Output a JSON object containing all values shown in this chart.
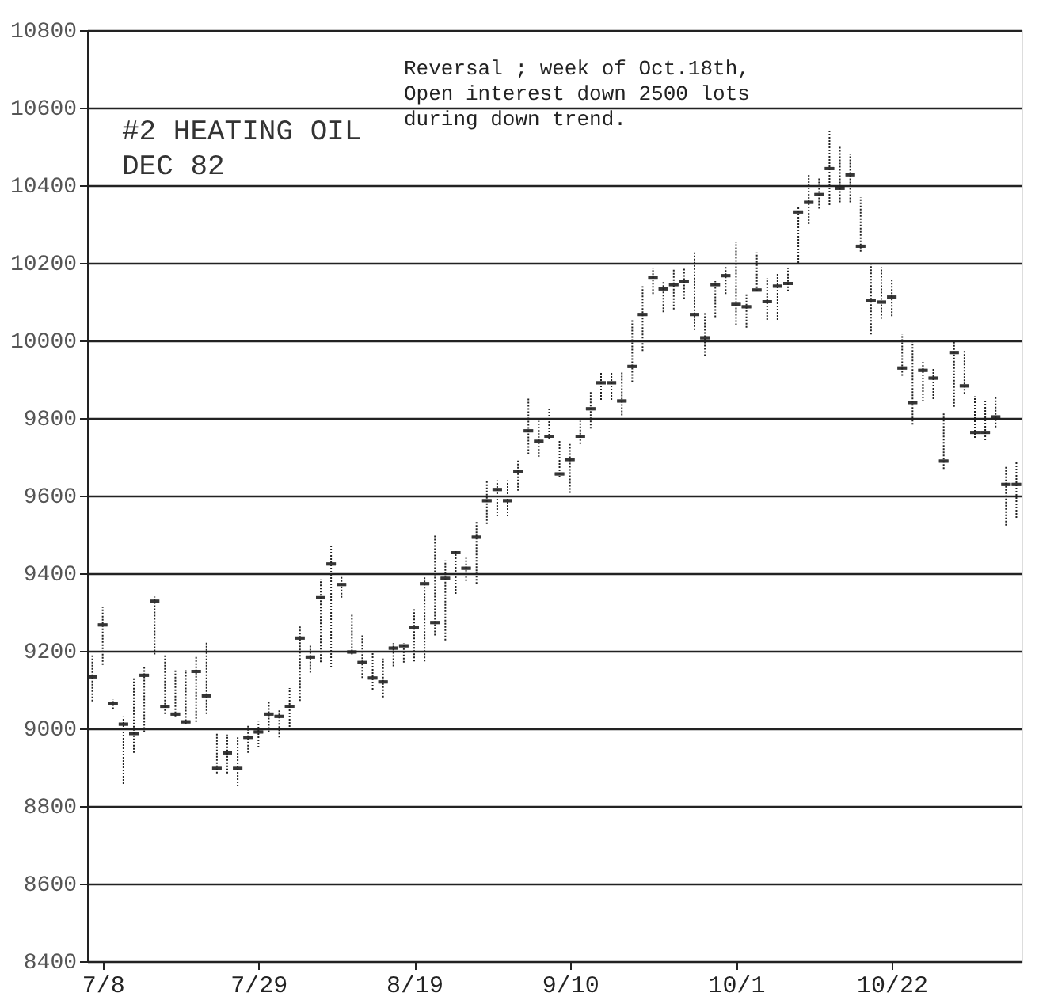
{
  "chart_data": {
    "type": "candlestick",
    "title": "#2 HEATING OIL",
    "subtitle": "DEC 82",
    "annotations": [
      "Reversal ; week of Oct.18th, Open interest down 2500 lots during down trend."
    ],
    "categories": [
      null,
      "7/8",
      null,
      null,
      null,
      null,
      null,
      null,
      null,
      null,
      null,
      null,
      null,
      null,
      null,
      null,
      "7/29",
      null,
      null,
      null,
      null,
      null,
      null,
      null,
      null,
      null,
      null,
      null,
      null,
      null,
      null,
      "8/19",
      null,
      null,
      null,
      null,
      null,
      null,
      null,
      null,
      null,
      null,
      null,
      null,
      null,
      null,
      "9/10",
      null,
      null,
      null,
      null,
      null,
      null,
      null,
      null,
      null,
      null,
      null,
      null,
      null,
      null,
      null,
      "10/1",
      null,
      null,
      null,
      null,
      null,
      null,
      null,
      null,
      null,
      null,
      null,
      null,
      null,
      null,
      "10/22",
      null,
      null,
      null,
      null,
      null,
      null,
      null,
      null,
      null,
      null,
      null,
      null
    ],
    "ohlc": [
      [
        9133,
        9190,
        9070,
        9133
      ],
      [
        9267,
        9313,
        9164,
        9267
      ],
      [
        9064,
        9075,
        9050,
        9064
      ],
      [
        9011,
        9031,
        8857,
        9011
      ],
      [
        8987,
        9131,
        8937,
        8987
      ],
      [
        9137,
        9161,
        8991,
        9137
      ],
      [
        9328,
        9340,
        9191,
        9328
      ],
      [
        9057,
        9191,
        9037,
        9057
      ],
      [
        9037,
        9151,
        9031,
        9037
      ],
      [
        9017,
        9151,
        9011,
        9017
      ],
      [
        9147,
        9184,
        9017,
        9147
      ],
      [
        9084,
        9224,
        9037,
        9084
      ],
      [
        8897,
        8991,
        8884,
        8897
      ],
      [
        8937,
        8984,
        8884,
        8937
      ],
      [
        8897,
        8977,
        8851,
        8897
      ],
      [
        8977,
        9011,
        8937,
        8977
      ],
      [
        8991,
        9017,
        8951,
        8991
      ],
      [
        9037,
        9071,
        8991,
        9037
      ],
      [
        9031,
        9051,
        8977,
        9031
      ],
      [
        9057,
        9104,
        9004,
        9057
      ],
      [
        9233,
        9264,
        9071,
        9233
      ],
      [
        9184,
        9217,
        9144,
        9184
      ],
      [
        9337,
        9384,
        9171,
        9337
      ],
      [
        9424,
        9471,
        9157,
        9424
      ],
      [
        9371,
        9391,
        9337,
        9371
      ],
      [
        9197,
        9297,
        9191,
        9197
      ],
      [
        9170,
        9240,
        9130,
        9170
      ],
      [
        9130,
        9200,
        9100,
        9130
      ],
      [
        9120,
        9180,
        9080,
        9120
      ],
      [
        9207,
        9220,
        9160,
        9207
      ],
      [
        9213,
        9220,
        9170,
        9213
      ],
      [
        9260,
        9307,
        9173,
        9260
      ],
      [
        9373,
        9393,
        9173,
        9373
      ],
      [
        9273,
        9500,
        9240,
        9273
      ],
      [
        9387,
        9433,
        9227,
        9387
      ],
      [
        9453,
        9460,
        9347,
        9453
      ],
      [
        9413,
        9440,
        9380,
        9413
      ],
      [
        9493,
        9533,
        9373,
        9493
      ],
      [
        9587,
        9640,
        9527,
        9587
      ],
      [
        9616,
        9640,
        9547,
        9616
      ],
      [
        9587,
        9640,
        9547,
        9587
      ],
      [
        9663,
        9693,
        9613,
        9663
      ],
      [
        9767,
        9853,
        9707,
        9767
      ],
      [
        9740,
        9793,
        9700,
        9740
      ],
      [
        9753,
        9827,
        9747,
        9753
      ],
      [
        9656,
        9747,
        9647,
        9656
      ],
      [
        9693,
        9733,
        9607,
        9693
      ],
      [
        9753,
        9793,
        9733,
        9753
      ],
      [
        9824,
        9867,
        9773,
        9824
      ],
      [
        9891,
        9920,
        9847,
        9891
      ],
      [
        9891,
        9920,
        9847,
        9891
      ],
      [
        9844,
        9920,
        9807,
        9844
      ],
      [
        9933,
        10053,
        9893,
        9933
      ],
      [
        10067,
        10140,
        9973,
        10067
      ],
      [
        10163,
        10187,
        10120,
        10163
      ],
      [
        10133,
        10153,
        10073,
        10133
      ],
      [
        10144,
        10187,
        10080,
        10144
      ],
      [
        10153,
        10187,
        10107,
        10153
      ],
      [
        10067,
        10227,
        10027,
        10067
      ],
      [
        10007,
        10073,
        9960,
        10007
      ],
      [
        10144,
        10153,
        10060,
        10144
      ],
      [
        10167,
        10193,
        10120,
        10167
      ],
      [
        10093,
        10253,
        10040,
        10093
      ],
      [
        10087,
        10120,
        10033,
        10087
      ],
      [
        10130,
        10227,
        10127,
        10130
      ],
      [
        10100,
        10160,
        10053,
        10100
      ],
      [
        10140,
        10173,
        10053,
        10140
      ],
      [
        10147,
        10187,
        10127,
        10147
      ],
      [
        10331,
        10347,
        10200,
        10331
      ],
      [
        10356,
        10427,
        10300,
        10356
      ],
      [
        10376,
        10420,
        10340,
        10376
      ],
      [
        10443,
        10540,
        10349,
        10443
      ],
      [
        10392,
        10500,
        10356,
        10392
      ],
      [
        10427,
        10480,
        10356,
        10427
      ],
      [
        10243,
        10369,
        10229,
        10243
      ],
      [
        10103,
        10196,
        10016,
        10103
      ],
      [
        10099,
        10189,
        10056,
        10099
      ],
      [
        10112,
        10156,
        10063,
        10112
      ],
      [
        9929,
        10016,
        9909,
        9929
      ],
      [
        9840,
        9996,
        9783,
        9840
      ],
      [
        9923,
        9949,
        9843,
        9923
      ],
      [
        9903,
        9929,
        9849,
        9903
      ],
      [
        9689,
        9816,
        9669,
        9689
      ],
      [
        9969,
        9996,
        9829,
        9969
      ],
      [
        9883,
        9976,
        9863,
        9883
      ],
      [
        9763,
        9856,
        9749,
        9763
      ],
      [
        9763,
        9843,
        9743,
        9763
      ],
      [
        9803,
        9856,
        9776,
        9803
      ],
      [
        9629,
        9676,
        9523,
        9629
      ],
      [
        9629,
        9689,
        9543,
        9629
      ]
    ],
    "color": "#222222",
    "ylim": [
      8400,
      10800
    ],
    "yticks": [
      8400,
      8600,
      8800,
      9000,
      9200,
      9400,
      9600,
      9800,
      10000,
      10200,
      10400,
      10600,
      10800
    ],
    "grid": "y"
  }
}
